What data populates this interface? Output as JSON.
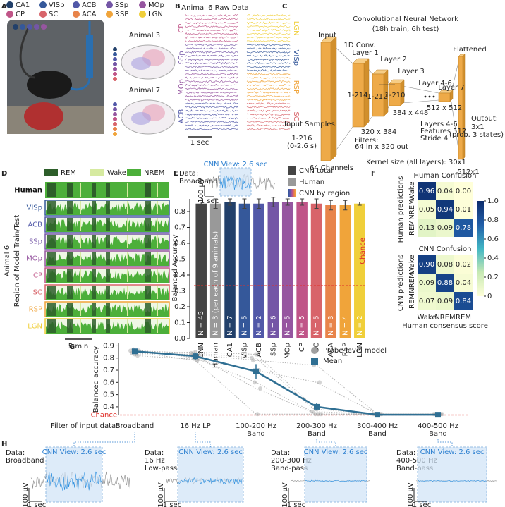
{
  "panels": {
    "letters": [
      "A",
      "B",
      "C",
      "D",
      "E",
      "F",
      "G",
      "H"
    ],
    "A": {
      "regions": [
        {
          "name": "CA1",
          "color": "#22406a"
        },
        {
          "name": "VISp",
          "color": "#35589a"
        },
        {
          "name": "ACB",
          "color": "#5158a8"
        },
        {
          "name": "SSp",
          "color": "#7456a6"
        },
        {
          "name": "MOp",
          "color": "#9656a0"
        },
        {
          "name": "CP",
          "color": "#c05588"
        },
        {
          "name": "SC",
          "color": "#d8646a"
        },
        {
          "name": "ACA",
          "color": "#e8844a"
        },
        {
          "name": "RSP",
          "color": "#f0a43a"
        },
        {
          "name": "LGN",
          "color": "#f0cf3a"
        }
      ],
      "animals": [
        "Animal 3",
        "Animal 7"
      ]
    },
    "B": {
      "title": "Animal 6 Raw Data",
      "left": [
        "CP",
        "SSp",
        "MOp",
        "ACB"
      ],
      "right": [
        "LGN",
        "VISp",
        "RSP",
        "SC"
      ],
      "scale": "1 sec"
    },
    "C": {
      "labels": [
        "Convolutional Neural Network",
        "(18h train, 6h test)",
        "Input",
        "1D Conv.",
        "Layer 1",
        "Layer 2",
        "Layer 3",
        "1-214",
        "1-212",
        "1-210",
        "320 x 384",
        "384 x 448",
        "Layer 4-6",
        "Layer 7",
        "512 x 512",
        "Filters:",
        "64 in x 320 out",
        "Layers 4-6",
        "Features 512",
        "Stride 4",
        "Flattened",
        "Output:",
        "3x1",
        "(prob. 3 states)",
        "Input Samples:",
        "1-216",
        "(0-2.6 s)",
        "64 Channels",
        "Kernel size (all layers): 30x1",
        "512x1"
      ]
    },
    "D": {
      "legend": [
        "REM",
        "Wake",
        "NREM"
      ],
      "rows": [
        "Human",
        "VISp",
        "ACB",
        "SSp",
        "MOp",
        "CP",
        "SC",
        "RSP",
        "LGN"
      ],
      "ylabel": [
        "Animal 6",
        "Region of Model Train/Test"
      ],
      "scale": "5 min"
    },
    "E": {
      "data": [
        "Data:",
        "Broadband"
      ],
      "view": "CNN View: 2.6 sec",
      "voltage": "100 µV",
      "time": "1 sec"
    },
    "H": {
      "insets": [
        [
          "Data:",
          "Broadband"
        ],
        [
          "Data:",
          "16 Hz",
          "Low-pass"
        ],
        [
          "Data:",
          "200-300 Hz",
          "Band-pass"
        ],
        [
          "Data:",
          "400-500 Hz",
          "Band-pass"
        ]
      ],
      "view": "CNN View: 2.6 sec",
      "voltage": "100 µV",
      "time": "1 sec"
    }
  },
  "chart_data": [
    {
      "type": "bar",
      "ylabel": "Balanced Accuracy",
      "categories": [
        "CNN",
        "Human",
        "CA1",
        "VISp",
        "ACB",
        "SSp",
        "MOp",
        "CP",
        "SC",
        "ACA",
        "RSP",
        "LGN"
      ],
      "values": [
        0.85,
        0.85,
        0.86,
        0.85,
        0.85,
        0.86,
        0.86,
        0.86,
        0.85,
        0.84,
        0.84,
        0.85
      ],
      "errors": [
        0.01,
        0.03,
        0.02,
        0.03,
        0.03,
        0.03,
        0.02,
        0.02,
        0.03,
        0.03,
        0.03,
        0.01
      ],
      "colors": [
        "#444444",
        "#999999",
        "#22406a",
        "#35589a",
        "#5158a8",
        "#7456a6",
        "#9656a0",
        "#c05588",
        "#d8646a",
        "#e8844a",
        "#f0a43a",
        "#f0cf3a"
      ],
      "n_labels": [
        "N = 45",
        "N = 3 (per each of 9 animals)",
        "N = 7",
        "N = 5",
        "N = 2",
        "N = 6",
        "N = 5",
        "N = 5",
        "N = 5",
        "N = 3",
        "N = 4",
        "N = 2"
      ],
      "ylim": [
        0,
        0.88
      ],
      "yticks": [
        {
          "value": 0,
          "label": "0.0"
        },
        0.1,
        0.2,
        0.3,
        0.4,
        0.5,
        0.6,
        0.7,
        0.8
      ],
      "chance": 0.333,
      "chance_label": "Chance",
      "chance_color": "#e0302a",
      "legend": [
        {
          "name": "CNN total",
          "color": "#444444"
        },
        {
          "name": "Human",
          "color": "#999999"
        },
        {
          "name": "CNN by region"
        }
      ]
    },
    {
      "type": "heatmap",
      "title": "Human Confusion",
      "ylabel": "Human predictions",
      "rows": [
        "Wake",
        "NREM",
        "REM"
      ],
      "values": [
        [
          0.96,
          0.04,
          0
        ],
        [
          0.05,
          0.94,
          0.01
        ],
        [
          0.13,
          0.09,
          0.78
        ]
      ],
      "value_labels": [
        [
          "0.96",
          "0.04",
          "0.00"
        ],
        [
          "0.05",
          "0.94",
          "0.01"
        ],
        [
          "0.13",
          "0.09",
          "0.78"
        ]
      ],
      "zlim": [
        0,
        1
      ],
      "colormap": [
        "#ffffd9",
        "#c7e9b4",
        "#41b6c4",
        "#225ea8",
        "#0c2c6c"
      ],
      "colorbar_ticks": [
        0,
        0.2,
        0.4,
        0.6,
        0.8,
        {
          "value": 1,
          "label": "1.0"
        }
      ]
    },
    {
      "type": "heatmap",
      "title": "CNN Confusion",
      "ylabel": "CNN predictions",
      "rows": [
        "Wake",
        "NREM",
        "REM"
      ],
      "columns": [
        "Wake",
        "NREM",
        "REM"
      ],
      "xlabel": "Human consensus score",
      "values": [
        [
          0.9,
          0.08,
          0.02
        ],
        [
          0.09,
          0.88,
          0.04
        ],
        [
          0.07,
          0.09,
          0.84
        ]
      ],
      "value_labels": [
        [
          "0.90",
          "0.08",
          "0.02"
        ],
        [
          "0.09",
          "0.88",
          "0.04"
        ],
        [
          "0.07",
          "0.09",
          "0.84"
        ]
      ],
      "zlim": [
        0,
        1
      ],
      "colormap": [
        "#ffffd9",
        "#c7e9b4",
        "#41b6c4",
        "#225ea8",
        "#0c2c6c"
      ]
    },
    {
      "type": "line",
      "ylabel": "Balanced accuracy",
      "xlabel": "Filter of input data:",
      "categories": [
        [
          "Broadband"
        ],
        [
          "16 Hz LP"
        ],
        [
          "100-200 Hz",
          "Band"
        ],
        [
          "200-300 Hz",
          "Band"
        ],
        [
          "300-400 Hz",
          "Band"
        ],
        [
          "400-500 Hz",
          "Band"
        ]
      ],
      "series": [
        {
          "name": "Probe-level model",
          "color": "#a0a0a0",
          "values": [
            [
              0.86,
              0.84,
              0.8,
              0.36,
              0.34,
              0.34
            ],
            [
              0.84,
              0.83,
              0.78,
              0.74,
              0.34,
              0.34
            ],
            [
              0.87,
              0.8,
              0.6,
              0.34,
              0.34,
              0.34
            ],
            [
              0.83,
              0.85,
              0.83,
              0.38,
              0.34,
              0.34
            ],
            [
              0.85,
              0.78,
              0.34,
              0.34,
              0.34,
              0.34
            ],
            [
              0.82,
              0.79,
              0.7,
              0.6,
              0.34,
              0.34
            ],
            [
              0.86,
              0.82,
              0.55,
              0.34,
              0.34,
              0.34
            ]
          ]
        },
        {
          "name": "Mean",
          "color": "#2f6f93",
          "values": [
            0.855,
            0.815,
            0.69,
            0.4,
            0.335,
            0.335
          ],
          "errors": [
            0.02,
            0.03,
            0.06,
            0.03,
            0.005,
            0.005
          ]
        }
      ],
      "ylim": [
        0.33,
        0.92
      ],
      "yticks": [
        0.4,
        0.5,
        0.6,
        0.7,
        0.8,
        0.9
      ],
      "chance": 0.333,
      "chance_label": "Chance",
      "chance_color": "#e0302a"
    }
  ]
}
